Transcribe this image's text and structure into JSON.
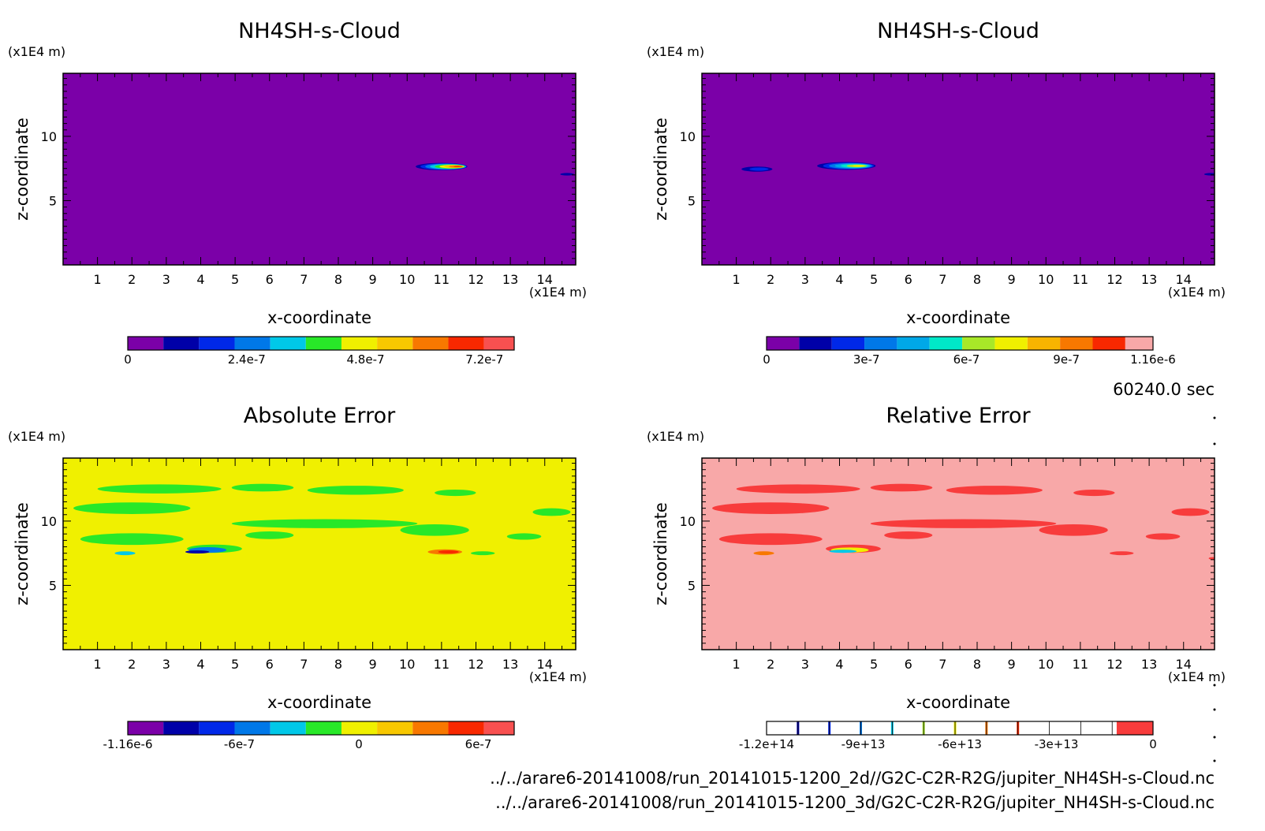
{
  "time_label": "60240.0 sec",
  "files": [
    "../../arare6-20141008/run_20141015-1200_2d//G2C-C2R-R2G/jupiter_NH4SH-s-Cloud.nc",
    "../../arare6-20141008/run_20141015-1200_3d/G2C-C2R-R2G/jupiter_NH4SH-s-Cloud.nc"
  ],
  "colors": {
    "rainbow11": [
      "#7b00a8",
      "#0000a8",
      "#0028e8",
      "#0078e8",
      "#00c8e8",
      "#28e828",
      "#f0f000",
      "#f8c800",
      "#f87800",
      "#f82800",
      "#f85050"
    ],
    "rainbow13": [
      "#7b00a8",
      "#0000a8",
      "#0028e8",
      "#0078e8",
      "#00a8e8",
      "#00e8c8",
      "#a8e828",
      "#f0f000",
      "#f8b400",
      "#f87800",
      "#f82800",
      "#f8a8a8"
    ],
    "relerr": [
      "#ffffff",
      "#0000a8",
      "#0028e8",
      "#0078e8",
      "#00c8e8",
      "#a8e828",
      "#f0f000",
      "#f87800",
      "#f82800",
      "#f83c3c"
    ]
  },
  "chart_data": [
    {
      "type": "heatmap",
      "title": "NH4SH-s-Cloud",
      "xlabel": "x-coordinate",
      "ylabel": "z-coordinate",
      "x_unit": "(x1E4 m)",
      "y_unit": "(x1E4 m)",
      "xlim": [
        0,
        14.9
      ],
      "ylim": [
        0,
        14.9
      ],
      "xticks": [
        "1",
        "2",
        "3",
        "4",
        "5",
        "6",
        "7",
        "8",
        "9",
        "10",
        "11",
        "12",
        "13",
        "14"
      ],
      "yticks": [
        "5",
        "10"
      ],
      "background": "#7b00a8",
      "colorbar": {
        "min": 0,
        "max": 7.8e-07,
        "ticks": [
          "0",
          "2.4e-7",
          "4.8e-7",
          "7.2e-7"
        ],
        "tick_values": [
          0,
          2.4e-07,
          4.8e-07,
          7.2e-07
        ]
      },
      "features": [
        {
          "x": 11.0,
          "z": 7.65,
          "rx": 0.75,
          "rz": 0.28,
          "peak": 6.5e-07
        },
        {
          "x": 14.65,
          "z": 7.05,
          "rx": 0.2,
          "rz": 0.1,
          "peak": 9e-08
        }
      ]
    },
    {
      "type": "heatmap",
      "title": "NH4SH-s-Cloud",
      "xlabel": "x-coordinate",
      "ylabel": "z-coordinate",
      "x_unit": "(x1E4 m)",
      "y_unit": "(x1E4 m)",
      "xlim": [
        0,
        14.9
      ],
      "ylim": [
        0,
        14.9
      ],
      "xticks": [
        "1",
        "2",
        "3",
        "4",
        "5",
        "6",
        "7",
        "8",
        "9",
        "10",
        "11",
        "12",
        "13",
        "14"
      ],
      "yticks": [
        "5",
        "10"
      ],
      "background": "#7b00a8",
      "colorbar": {
        "min": 0,
        "max": 1.16e-06,
        "ticks": [
          "0",
          "3e-7",
          "6e-7",
          "9e-7",
          "1.16e-6"
        ],
        "tick_values": [
          0,
          3e-07,
          6e-07,
          9e-07,
          1.16e-06
        ]
      },
      "features": [
        {
          "x": 4.2,
          "z": 7.7,
          "rx": 0.85,
          "rz": 0.3,
          "peak": 7.5e-07
        },
        {
          "x": 1.6,
          "z": 7.45,
          "rx": 0.45,
          "rz": 0.2,
          "peak": 2e-07
        },
        {
          "x": 14.8,
          "z": 7.05,
          "rx": 0.2,
          "rz": 0.1,
          "peak": 1e-07
        }
      ]
    },
    {
      "type": "heatmap",
      "title": "Absolute Error",
      "xlabel": "x-coordinate",
      "ylabel": "z-coordinate",
      "x_unit": "(x1E4 m)",
      "y_unit": "(x1E4 m)",
      "xlim": [
        0,
        14.9
      ],
      "ylim": [
        0,
        14.9
      ],
      "xticks": [
        "1",
        "2",
        "3",
        "4",
        "5",
        "6",
        "7",
        "8",
        "9",
        "10",
        "11",
        "12",
        "13",
        "14"
      ],
      "yticks": [
        "5",
        "10"
      ],
      "background": "#f0f000",
      "colorbar": {
        "min": -1.16e-06,
        "max": 7.8e-07,
        "ticks": [
          "-1.16e-6",
          "-6e-7",
          "0",
          "6e-7"
        ],
        "tick_values": [
          -1.16e-06,
          -6e-07,
          0,
          6e-07
        ]
      },
      "patches": [
        {
          "x": 2.8,
          "z": 12.5,
          "rx": 1.8,
          "rz": 0.35,
          "color": "#28e828"
        },
        {
          "x": 2.0,
          "z": 11.0,
          "rx": 1.7,
          "rz": 0.45,
          "color": "#28e828"
        },
        {
          "x": 5.8,
          "z": 12.6,
          "rx": 0.9,
          "rz": 0.3,
          "color": "#28e828"
        },
        {
          "x": 8.5,
          "z": 12.4,
          "rx": 1.4,
          "rz": 0.35,
          "color": "#28e828"
        },
        {
          "x": 11.4,
          "z": 12.2,
          "rx": 0.6,
          "rz": 0.25,
          "color": "#28e828"
        },
        {
          "x": 7.6,
          "z": 9.8,
          "rx": 2.7,
          "rz": 0.35,
          "color": "#28e828"
        },
        {
          "x": 10.8,
          "z": 9.3,
          "rx": 1.0,
          "rz": 0.45,
          "color": "#28e828"
        },
        {
          "x": 2.0,
          "z": 8.6,
          "rx": 1.5,
          "rz": 0.45,
          "color": "#28e828"
        },
        {
          "x": 6.0,
          "z": 8.9,
          "rx": 0.7,
          "rz": 0.3,
          "color": "#28e828"
        },
        {
          "x": 14.2,
          "z": 10.7,
          "rx": 0.55,
          "rz": 0.3,
          "color": "#28e828"
        },
        {
          "x": 13.4,
          "z": 8.8,
          "rx": 0.5,
          "rz": 0.25,
          "color": "#28e828"
        },
        {
          "x": 12.2,
          "z": 7.5,
          "rx": 0.35,
          "rz": 0.15,
          "color": "#28e828"
        },
        {
          "x": 4.4,
          "z": 7.85,
          "rx": 0.8,
          "rz": 0.32,
          "color": "#28e828"
        },
        {
          "x": 4.2,
          "z": 7.75,
          "rx": 0.55,
          "rz": 0.22,
          "color": "#0078e8"
        },
        {
          "x": 3.9,
          "z": 7.6,
          "rx": 0.35,
          "rz": 0.12,
          "color": "#0000a8"
        },
        {
          "x": 1.8,
          "z": 7.5,
          "rx": 0.3,
          "rz": 0.15,
          "color": "#00c8e8"
        },
        {
          "x": 11.1,
          "z": 7.6,
          "rx": 0.5,
          "rz": 0.2,
          "color": "#f87800"
        },
        {
          "x": 11.2,
          "z": 7.6,
          "rx": 0.3,
          "rz": 0.12,
          "color": "#f82800"
        }
      ]
    },
    {
      "type": "heatmap",
      "title": "Relative Error",
      "xlabel": "x-coordinate",
      "ylabel": "z-coordinate",
      "x_unit": "(x1E4 m)",
      "y_unit": "(x1E4 m)",
      "xlim": [
        0,
        14.9
      ],
      "ylim": [
        0,
        14.9
      ],
      "xticks": [
        "1",
        "2",
        "3",
        "4",
        "5",
        "6",
        "7",
        "8",
        "9",
        "10",
        "11",
        "12",
        "13",
        "14"
      ],
      "yticks": [
        "5",
        "10"
      ],
      "background": "#f8a8a8",
      "colorbar": {
        "min": -120000000000000.0,
        "max": 0,
        "ticks": [
          "-1.2e+14",
          "-9e+13",
          "-6e+13",
          "-3e+13",
          "0"
        ],
        "tick_values": [
          -120000000000000.0,
          -90000000000000.0,
          -60000000000000.0,
          -30000000000000.0,
          0
        ]
      },
      "patches": [
        {
          "x": 2.8,
          "z": 12.5,
          "rx": 1.8,
          "rz": 0.35,
          "color": "#f83c3c"
        },
        {
          "x": 2.0,
          "z": 11.0,
          "rx": 1.7,
          "rz": 0.45,
          "color": "#f83c3c"
        },
        {
          "x": 5.8,
          "z": 12.6,
          "rx": 0.9,
          "rz": 0.3,
          "color": "#f83c3c"
        },
        {
          "x": 8.5,
          "z": 12.4,
          "rx": 1.4,
          "rz": 0.35,
          "color": "#f83c3c"
        },
        {
          "x": 11.4,
          "z": 12.2,
          "rx": 0.6,
          "rz": 0.25,
          "color": "#f83c3c"
        },
        {
          "x": 7.6,
          "z": 9.8,
          "rx": 2.7,
          "rz": 0.35,
          "color": "#f83c3c"
        },
        {
          "x": 10.8,
          "z": 9.3,
          "rx": 1.0,
          "rz": 0.45,
          "color": "#f83c3c"
        },
        {
          "x": 2.0,
          "z": 8.6,
          "rx": 1.5,
          "rz": 0.45,
          "color": "#f83c3c"
        },
        {
          "x": 6.0,
          "z": 8.9,
          "rx": 0.7,
          "rz": 0.3,
          "color": "#f83c3c"
        },
        {
          "x": 14.2,
          "z": 10.7,
          "rx": 0.55,
          "rz": 0.3,
          "color": "#f83c3c"
        },
        {
          "x": 13.4,
          "z": 8.8,
          "rx": 0.5,
          "rz": 0.25,
          "color": "#f83c3c"
        },
        {
          "x": 12.2,
          "z": 7.5,
          "rx": 0.35,
          "rz": 0.15,
          "color": "#f83c3c"
        },
        {
          "x": 4.4,
          "z": 7.85,
          "rx": 0.8,
          "rz": 0.32,
          "color": "#f83c3c"
        },
        {
          "x": 4.3,
          "z": 7.75,
          "rx": 0.55,
          "rz": 0.2,
          "color": "#f0f000"
        },
        {
          "x": 4.1,
          "z": 7.65,
          "rx": 0.4,
          "rz": 0.12,
          "color": "#00c8e8"
        },
        {
          "x": 1.8,
          "z": 7.5,
          "rx": 0.3,
          "rz": 0.15,
          "color": "#f87800"
        },
        {
          "x": 14.85,
          "z": 7.1,
          "rx": 0.12,
          "rz": 0.1,
          "color": "#f83c3c"
        }
      ]
    }
  ]
}
